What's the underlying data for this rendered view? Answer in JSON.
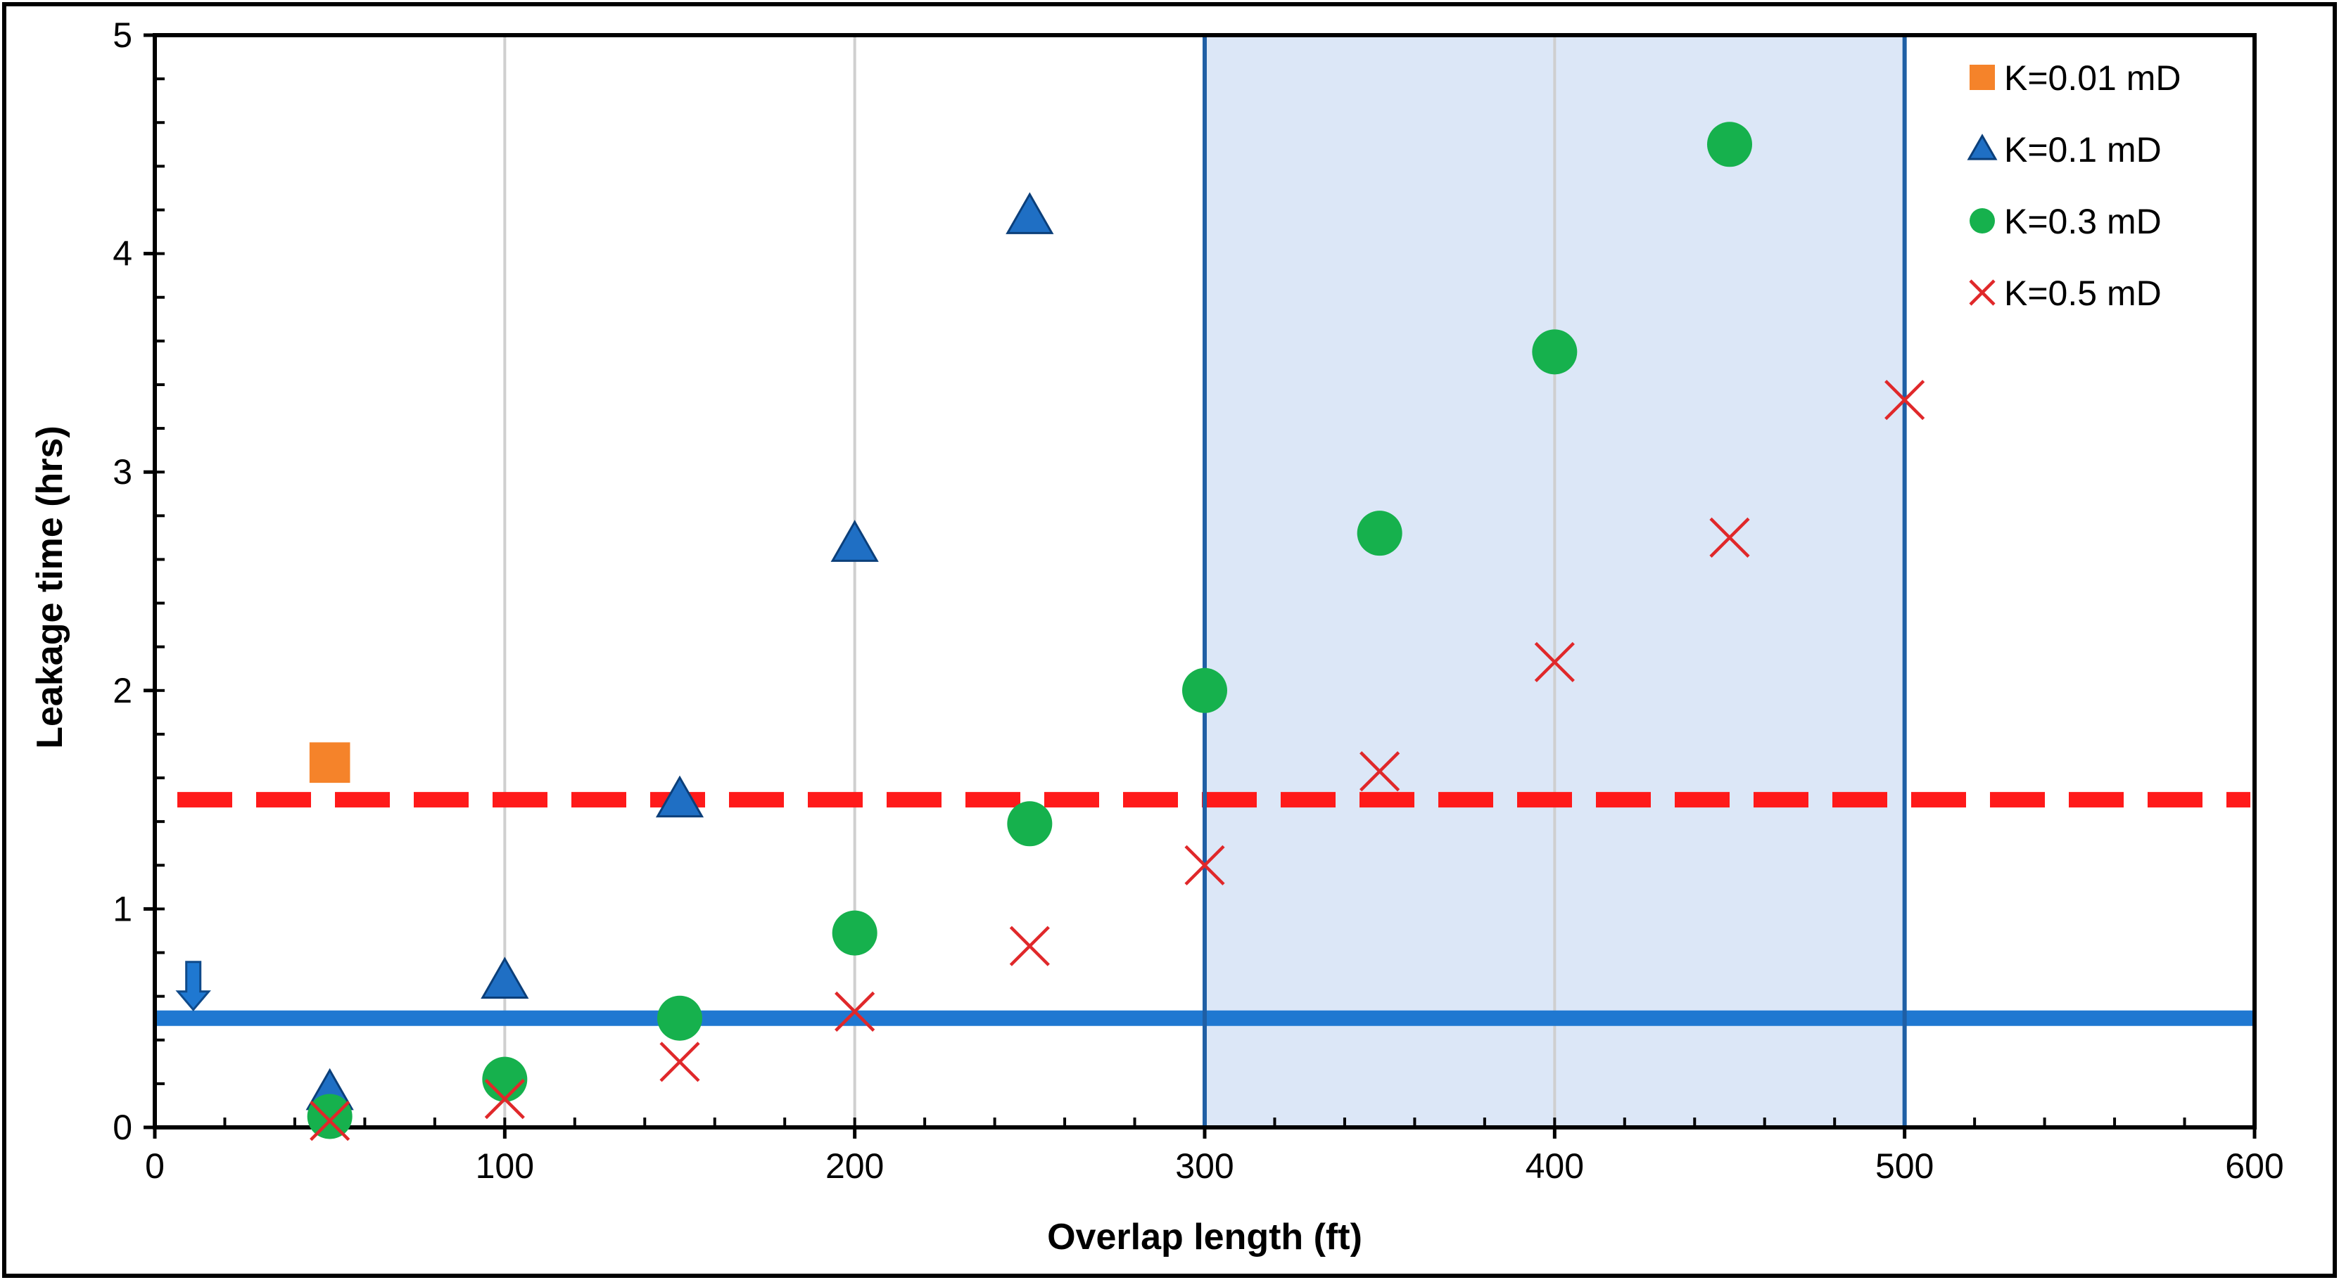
{
  "chart_data": {
    "type": "scatter",
    "title": "",
    "xlabel": "Overlap length (ft)",
    "ylabel": "Leakage time (hrs)",
    "xlim": [
      0,
      600
    ],
    "ylim": [
      0,
      5
    ],
    "x_ticks": [
      0,
      100,
      200,
      300,
      400,
      500,
      600
    ],
    "y_ticks": [
      0,
      1,
      2,
      3,
      4,
      5
    ],
    "x_minor_step": 20,
    "y_minor_step": 0.2,
    "x_gridlines": [
      100,
      200,
      400
    ],
    "legend_position": "top-right",
    "series": [
      {
        "name": "K=0.01 mD",
        "marker": "square",
        "color": "#F5832A",
        "points": [
          [
            50,
            1.67
          ]
        ]
      },
      {
        "name": "K=0.1 mD",
        "marker": "triangle",
        "color": "#1F6FC4",
        "points": [
          [
            50,
            0.16
          ],
          [
            100,
            0.67
          ],
          [
            150,
            1.5
          ],
          [
            200,
            2.67
          ],
          [
            250,
            4.17
          ]
        ]
      },
      {
        "name": "K=0.3 mD",
        "marker": "circle",
        "color": "#16B14D",
        "points": [
          [
            50,
            0.05
          ],
          [
            100,
            0.22
          ],
          [
            150,
            0.5
          ],
          [
            200,
            0.89
          ],
          [
            250,
            1.39
          ],
          [
            300,
            2.0
          ],
          [
            350,
            2.72
          ],
          [
            400,
            3.55
          ],
          [
            450,
            4.5
          ]
        ]
      },
      {
        "name": "K=0.5 mD",
        "marker": "x",
        "color": "#E0282A",
        "points": [
          [
            50,
            0.03
          ],
          [
            100,
            0.13
          ],
          [
            150,
            0.3
          ],
          [
            200,
            0.53
          ],
          [
            250,
            0.83
          ],
          [
            300,
            1.2
          ],
          [
            350,
            1.63
          ],
          [
            400,
            2.13
          ],
          [
            450,
            2.7
          ],
          [
            500,
            3.33
          ]
        ]
      }
    ],
    "reference_lines": [
      {
        "name": "dashed-threshold",
        "y": 1.5,
        "color": "#FF1A1A",
        "style": "dashed"
      },
      {
        "name": "solid-threshold",
        "y": 0.5,
        "color": "#1F78D1",
        "style": "solid"
      }
    ],
    "highlight_region": {
      "x0": 300,
      "x1": 500,
      "fill": "#DCE7F7",
      "stroke": "#1F5FA5"
    },
    "arrow_marker": {
      "x": 11,
      "y": 0.5,
      "color": "#1F78D1"
    }
  }
}
